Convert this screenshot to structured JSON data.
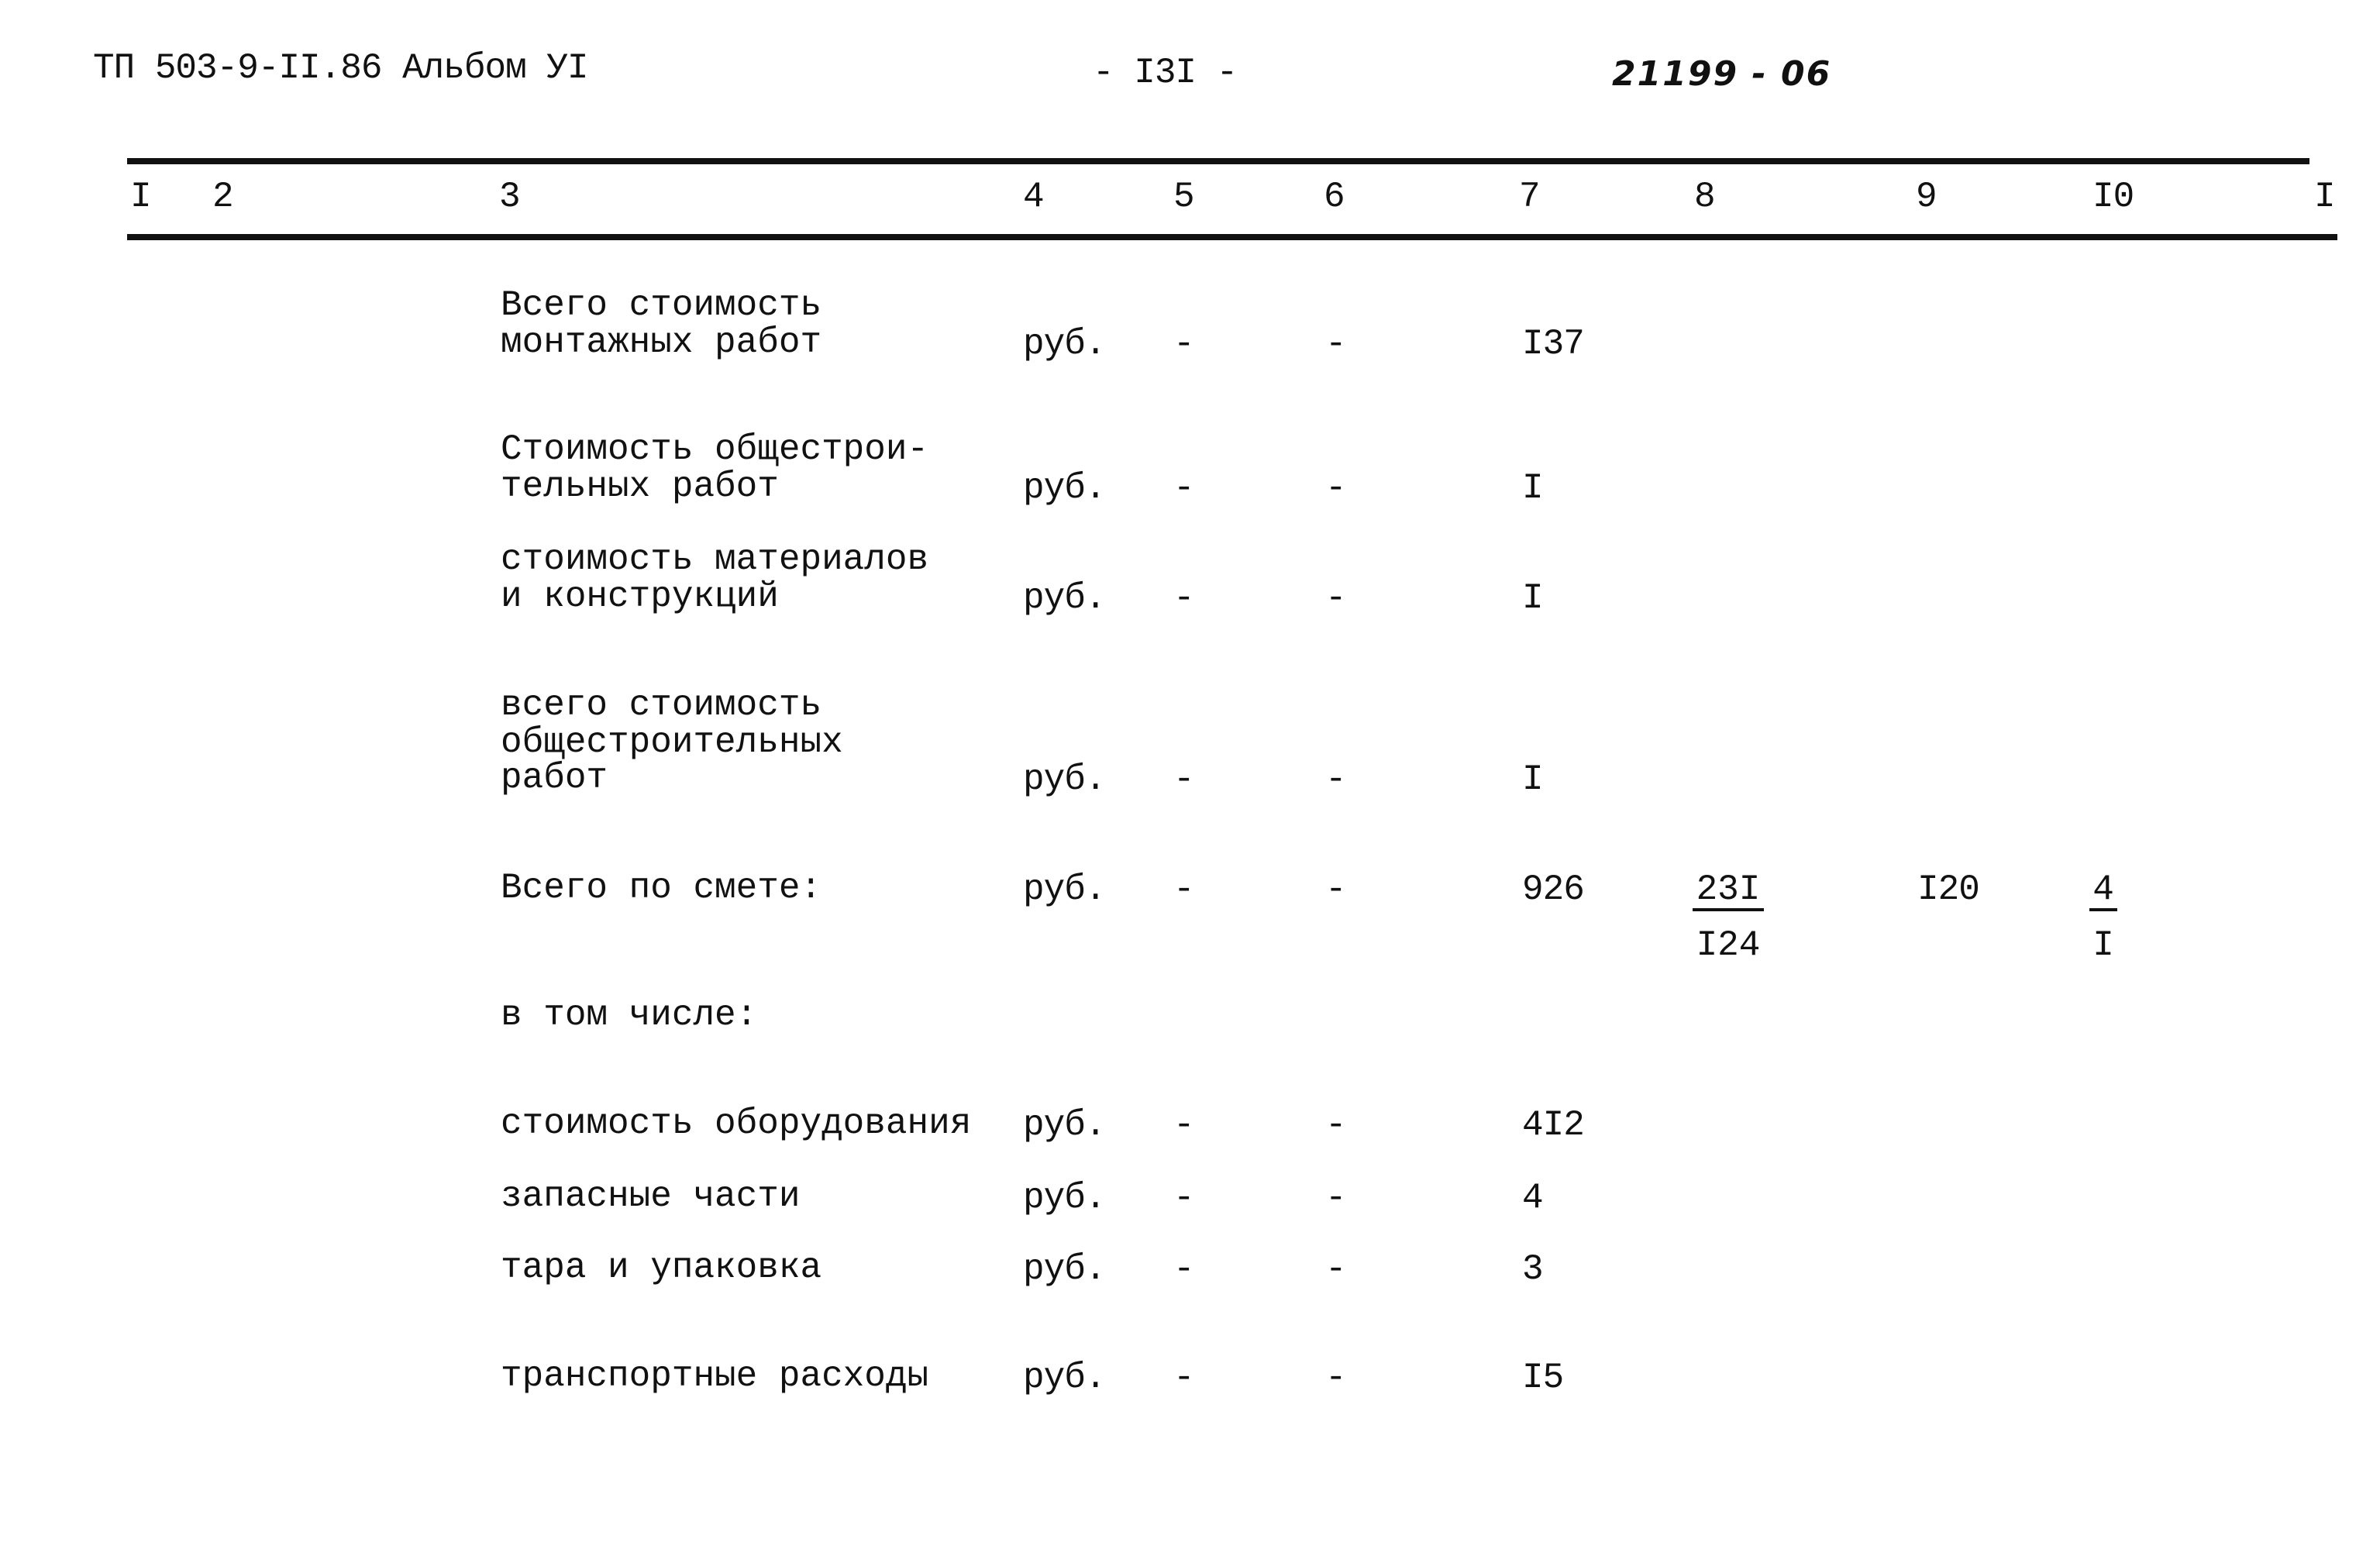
{
  "header": {
    "doc_code": "ТП 503-9-II.86 Альбом УI",
    "page_number": "- I3I -",
    "handwritten_number": "21199 - 06"
  },
  "columns": [
    "I",
    "2",
    "3",
    "4",
    "5",
    "6",
    "7",
    "8",
    "9",
    "I0",
    "I"
  ],
  "rows": [
    {
      "label": [
        "Всего стоимость",
        "монтажных работ"
      ],
      "unit": "руб.",
      "c5": "-",
      "c6": "-",
      "c7": "I37"
    },
    {
      "label": [
        "Стоимость общестрои-",
        "тельных работ"
      ],
      "unit": "руб.",
      "c5": "-",
      "c6": "-",
      "c7": "I"
    },
    {
      "label": [
        "стоимость материалов",
        "и конструкций"
      ],
      "unit": "руб.",
      "c5": "-",
      "c6": "-",
      "c7": "I"
    },
    {
      "label": [
        "всего стоимость",
        "общестроительных",
        "работ"
      ],
      "unit": "руб.",
      "c5": "-",
      "c6": "-",
      "c7": "I"
    },
    {
      "label": [
        "Всего по смете:"
      ],
      "unit": "руб.",
      "c5": "-",
      "c6": "-",
      "c7": "926",
      "c8": {
        "top": "23I",
        "bottom": "I24"
      },
      "c9": "I20",
      "c10": {
        "top": "4",
        "bottom": "I"
      }
    },
    {
      "label": [
        "в том числе:"
      ]
    },
    {
      "label": [
        "стоимость оборудования"
      ],
      "unit": "руб.",
      "c5": "-",
      "c6": "-",
      "c7": "4I2"
    },
    {
      "label": [
        "запасные части"
      ],
      "unit": "руб.",
      "c5": "-",
      "c6": "-",
      "c7": "4"
    },
    {
      "label": [
        "тара и упаковка"
      ],
      "unit": "руб.",
      "c5": "-",
      "c6": "-",
      "c7": "3"
    },
    {
      "label": [
        "транспортные расходы"
      ],
      "unit": "руб.",
      "c5": "-",
      "c6": "-",
      "c7": "I5"
    }
  ]
}
